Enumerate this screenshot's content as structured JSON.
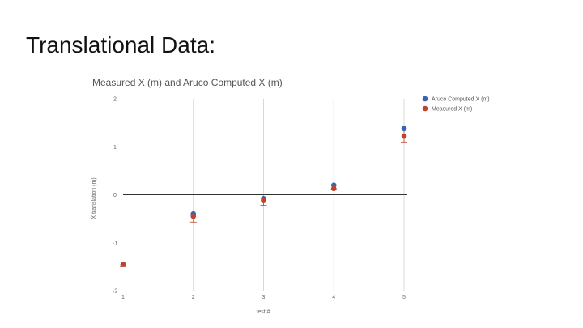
{
  "slide": {
    "title": "Translational Data:"
  },
  "chart_data": {
    "type": "scatter",
    "title": "Measured X (m) and Aruco Computed X (m)",
    "xlabel": "test #",
    "ylabel": "X translation (m)",
    "x": [
      1,
      2,
      3,
      4,
      5
    ],
    "xlim": [
      1,
      5
    ],
    "ylim": [
      -2,
      2
    ],
    "xticks": [
      "1",
      "2",
      "3",
      "4",
      "5"
    ],
    "yticks": [
      "2",
      "1",
      "0",
      "-1",
      "-2"
    ],
    "grid": "vertical",
    "legend_position": "right",
    "series": [
      {
        "name": "Aruco Computed X (m)",
        "color": "#3d62b3",
        "values": [
          -1.45,
          -0.4,
          -0.08,
          0.2,
          1.38
        ]
      },
      {
        "name": "Measured X (m)",
        "color": "#c0432b",
        "values": [
          -1.45,
          -0.45,
          -0.12,
          0.13,
          1.22
        ]
      }
    ],
    "error_bars": {
      "series": "Measured X (m)",
      "color": "#c0432b",
      "values": [
        0.05,
        0.12,
        0.1,
        0.02,
        0.12
      ]
    }
  }
}
